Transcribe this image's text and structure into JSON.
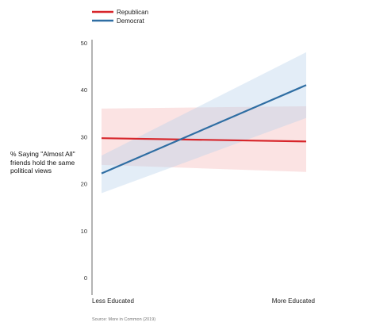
{
  "chart_data": {
    "type": "line",
    "title": "",
    "ylabel_lines": [
      "% Saying \"Almost All\"",
      "friends hold the same",
      "political views"
    ],
    "xlabel": "",
    "categories": [
      "Less Educated",
      "More Educated"
    ],
    "ylim": [
      0,
      50
    ],
    "yticks": [
      0,
      10,
      20,
      30,
      40,
      50
    ],
    "grid": false,
    "legend_placement": "top-left",
    "series": [
      {
        "name": "Republican",
        "color": "#d7262b",
        "band_color": "#f4b8b9",
        "values": [
          29.7,
          29.0
        ],
        "ci_low": [
          24.0,
          22.5
        ],
        "ci_high": [
          36.0,
          36.5
        ]
      },
      {
        "name": "Democrat",
        "color": "#2f6ea3",
        "band_color": "#b9d1ec",
        "values": [
          22.2,
          41.0
        ],
        "ci_low": [
          18.0,
          34.0
        ],
        "ci_high": [
          26.0,
          48.0
        ]
      }
    ],
    "source": "Source: More in Common (2019)"
  }
}
